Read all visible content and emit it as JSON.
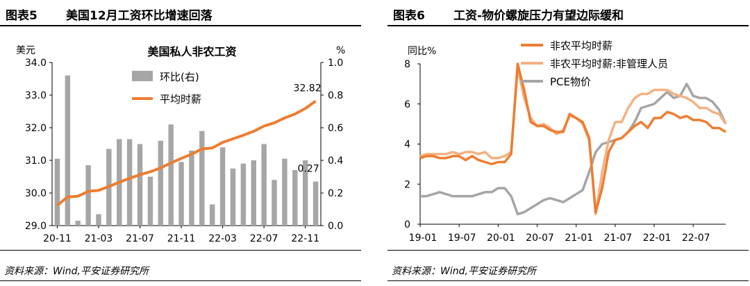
{
  "left": {
    "fig_no": "图表5",
    "fig_title": "美国12月工资环比增速回落",
    "source": "资料来源：Wind,平安证券研究所"
  },
  "right": {
    "fig_no": "图表6",
    "fig_title": "工资-物价螺旋压力有望边际缓和",
    "source": "资料来源：Wind,平安证券研究所"
  },
  "chart_data": [
    {
      "type": "bar+line",
      "title": "美国私人非农工资",
      "ylabel": "美元",
      "y2label": "%",
      "ylim": [
        29,
        34
      ],
      "yticks": [
        "29.0",
        "30.0",
        "31.0",
        "32.0",
        "33.0",
        "34.0"
      ],
      "y2lim": [
        0,
        1
      ],
      "y2ticks": [
        "0.0",
        "0.2",
        "0.4",
        "0.6",
        "0.8",
        "1.0"
      ],
      "xticks": [
        "20-11",
        "21-03",
        "21-07",
        "21-11",
        "22-03",
        "22-07",
        "22-11"
      ],
      "legend": [
        "环比(右)",
        "平均时薪"
      ],
      "colors": {
        "bar": "#a6a6a6",
        "line": "#ed7d31"
      },
      "categories": [
        "20-11",
        "20-12",
        "21-01",
        "21-02",
        "21-03",
        "21-04",
        "21-05",
        "21-06",
        "21-07",
        "21-08",
        "21-09",
        "21-10",
        "21-11",
        "21-12",
        "22-01",
        "22-02",
        "22-03",
        "22-04",
        "22-05",
        "22-06",
        "22-07",
        "22-08",
        "22-09",
        "22-10",
        "22-11",
        "22-12"
      ],
      "series": [
        {
          "name": "环比(右)",
          "axis": "right",
          "values": [
            0.41,
            0.92,
            0.03,
            0.37,
            0.07,
            0.47,
            0.53,
            0.53,
            0.5,
            0.3,
            0.52,
            0.62,
            0.39,
            0.46,
            0.58,
            0.13,
            0.48,
            0.35,
            0.38,
            0.4,
            0.5,
            0.28,
            0.41,
            0.34,
            0.4,
            0.27
          ]
        },
        {
          "name": "平均时薪",
          "axis": "left",
          "values": [
            29.62,
            29.88,
            29.9,
            30.05,
            30.08,
            30.2,
            30.33,
            30.45,
            30.56,
            30.65,
            30.77,
            30.92,
            31.06,
            31.19,
            31.35,
            31.38,
            31.55,
            31.66,
            31.77,
            31.89,
            32.05,
            32.15,
            32.3,
            32.42,
            32.59,
            32.82
          ]
        }
      ],
      "annotations": [
        "32.82",
        "0.27"
      ]
    },
    {
      "type": "line",
      "ylabel": "同比%",
      "ylim": [
        0,
        8
      ],
      "yticks": [
        "0",
        "2",
        "4",
        "6",
        "8"
      ],
      "xticks": [
        "19-01",
        "19-07",
        "20-01",
        "20-07",
        "21-01",
        "21-07",
        "22-01",
        "22-07"
      ],
      "colors": {
        "a": "#ed7d31",
        "b": "#f4b183",
        "c": "#a5a5a5"
      },
      "x": [
        "19-01",
        "19-02",
        "19-03",
        "19-04",
        "19-05",
        "19-06",
        "19-07",
        "19-08",
        "19-09",
        "19-10",
        "19-11",
        "19-12",
        "20-01",
        "20-02",
        "20-03",
        "20-04",
        "20-05",
        "20-06",
        "20-07",
        "20-08",
        "20-09",
        "20-10",
        "20-11",
        "20-12",
        "21-01",
        "21-02",
        "21-03",
        "21-04",
        "21-05",
        "21-06",
        "21-07",
        "21-08",
        "21-09",
        "21-10",
        "21-11",
        "21-12",
        "22-01",
        "22-02",
        "22-03",
        "22-04",
        "22-05",
        "22-06",
        "22-07",
        "22-08",
        "22-09",
        "22-10",
        "22-11",
        "22-12"
      ],
      "series": [
        {
          "name": "非农平均时薪",
          "values": [
            3.3,
            3.4,
            3.4,
            3.3,
            3.3,
            3.4,
            3.4,
            3.2,
            3.4,
            3.2,
            3.1,
            3.0,
            3.1,
            3.1,
            3.5,
            8.0,
            6.7,
            5.1,
            4.9,
            4.9,
            4.7,
            4.6,
            4.6,
            5.5,
            5.3,
            5.1,
            4.3,
            0.6,
            1.8,
            3.6,
            4.2,
            4.3,
            4.6,
            4.9,
            5.1,
            4.8,
            5.3,
            5.3,
            5.6,
            5.5,
            5.3,
            5.4,
            5.2,
            5.2,
            5.1,
            4.8,
            4.8,
            4.6
          ]
        },
        {
          "name": "非农平均时薪:非管理人员",
          "values": [
            3.4,
            3.5,
            3.5,
            3.5,
            3.5,
            3.6,
            3.5,
            3.6,
            3.6,
            3.5,
            3.6,
            3.3,
            3.3,
            3.4,
            3.6,
            7.8,
            6.3,
            5.3,
            4.9,
            5.0,
            4.8,
            4.5,
            4.7,
            5.4,
            5.3,
            5.0,
            4.2,
            0.5,
            2.6,
            4.2,
            5.1,
            5.1,
            5.8,
            6.3,
            6.5,
            6.5,
            6.7,
            6.7,
            6.7,
            6.5,
            6.4,
            6.3,
            6.1,
            5.8,
            5.8,
            5.6,
            5.5,
            5.0
          ]
        },
        {
          "name": "PCE物价",
          "values": [
            1.4,
            1.4,
            1.5,
            1.6,
            1.5,
            1.4,
            1.4,
            1.4,
            1.4,
            1.5,
            1.6,
            1.6,
            1.8,
            1.8,
            1.4,
            0.5,
            0.6,
            0.8,
            1.0,
            1.2,
            1.3,
            1.2,
            1.1,
            1.3,
            1.5,
            1.7,
            2.6,
            3.6,
            4.0,
            4.1,
            4.2,
            4.3,
            4.6,
            5.1,
            5.8,
            5.9,
            6.0,
            6.3,
            6.6,
            6.3,
            6.4,
            7.0,
            6.4,
            6.3,
            6.3,
            6.1,
            5.7,
            5.0
          ]
        }
      ]
    }
  ]
}
